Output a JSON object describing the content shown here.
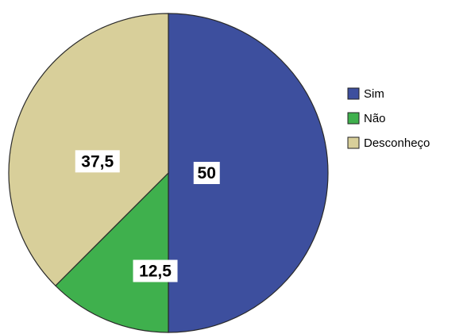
{
  "chart_data": {
    "type": "pie",
    "title": "",
    "categories": [
      "Sim",
      "Não",
      "Desconheço"
    ],
    "values": [
      50,
      12.5,
      37.5
    ],
    "data_labels": [
      "50",
      "12,5",
      "37,5"
    ],
    "colors": [
      "#3d4f9e",
      "#3fb04d",
      "#d8cf9a"
    ],
    "legend": {
      "placement": "right",
      "entries": [
        "Sim",
        "Não",
        "Desconheço"
      ]
    },
    "start": "top",
    "direction": "clockwise"
  }
}
